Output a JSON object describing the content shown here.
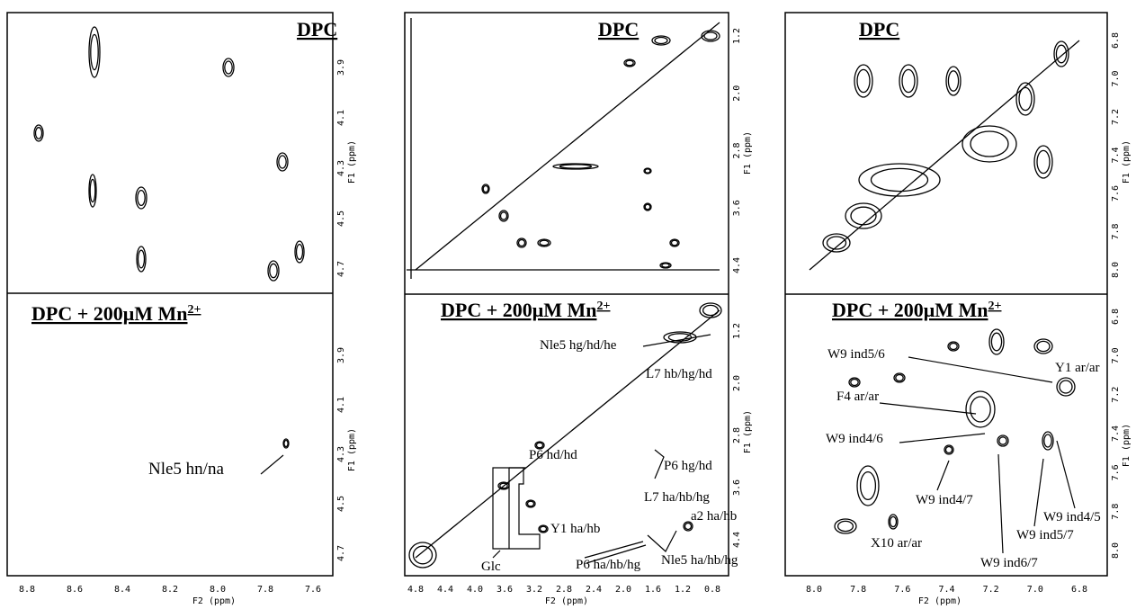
{
  "panels": [
    {
      "x_axis_title": "F2 (ppm)",
      "y_axis_title": "F1 (ppm)",
      "x_ticks": [
        "8.8",
        "8.6",
        "8.4",
        "8.2",
        "8.0",
        "7.8",
        "7.6"
      ],
      "top": {
        "title": "DPC",
        "y_ticks": [
          "3.9",
          "4.1",
          "4.3",
          "4.5",
          "4.7"
        ]
      },
      "bottom": {
        "title": "DPC + 200μM Mn",
        "title_sup": "2+",
        "y_ticks": [
          "3.9",
          "4.1",
          "4.3",
          "4.5",
          "4.7"
        ],
        "annotations": [
          "Nle5 hn/na"
        ]
      }
    },
    {
      "x_axis_title": "F2 (ppm)",
      "y_axis_title": "F1 (ppm)",
      "x_ticks": [
        "4.8",
        "4.4",
        "4.0",
        "3.6",
        "3.2",
        "2.8",
        "2.4",
        "2.0",
        "1.6",
        "1.2",
        "0.8"
      ],
      "top": {
        "title": "DPC",
        "y_ticks": [
          "1.2",
          "2.0",
          "2.8",
          "3.6",
          "4.4"
        ]
      },
      "bottom": {
        "title": "DPC + 200μM Mn",
        "title_sup": "2+",
        "y_ticks": [
          "1.2",
          "2.0",
          "2.8",
          "3.6",
          "4.4"
        ],
        "annotations": [
          "Nle5 hg/hd/he",
          "L7 hb/hg/hd",
          "P6 hd/hd",
          "P6 hg/hd",
          "L7 ha/hb/hg",
          "Y1 ha/hb",
          "a2 ha/hb",
          "P6 ha/hb/hg",
          "Nle5 ha/hb/hg",
          "Glc"
        ]
      }
    },
    {
      "x_axis_title": "F2 (ppm)",
      "y_axis_title": "F1 (ppm)",
      "x_ticks": [
        "8.0",
        "7.8",
        "7.6",
        "7.4",
        "7.2",
        "7.0",
        "6.8"
      ],
      "top": {
        "title": "DPC",
        "y_ticks": [
          "6.8",
          "7.0",
          "7.2",
          "7.4",
          "7.6",
          "7.8",
          "8.0"
        ]
      },
      "bottom": {
        "title": "DPC + 200μM Mn",
        "title_sup": "2+",
        "y_ticks": [
          "6.8",
          "7.0",
          "7.2",
          "7.4",
          "7.6",
          "7.8",
          "8.0"
        ],
        "annotations": [
          "W9 ind5/6",
          "Y1 ar/ar",
          "F4 ar/ar",
          "W9 ind4/6",
          "W9 ind4/7",
          "W9 ind4/5",
          "W9 ind5/7",
          "W9 ind6/7",
          "X10 ar/ar"
        ]
      }
    }
  ]
}
